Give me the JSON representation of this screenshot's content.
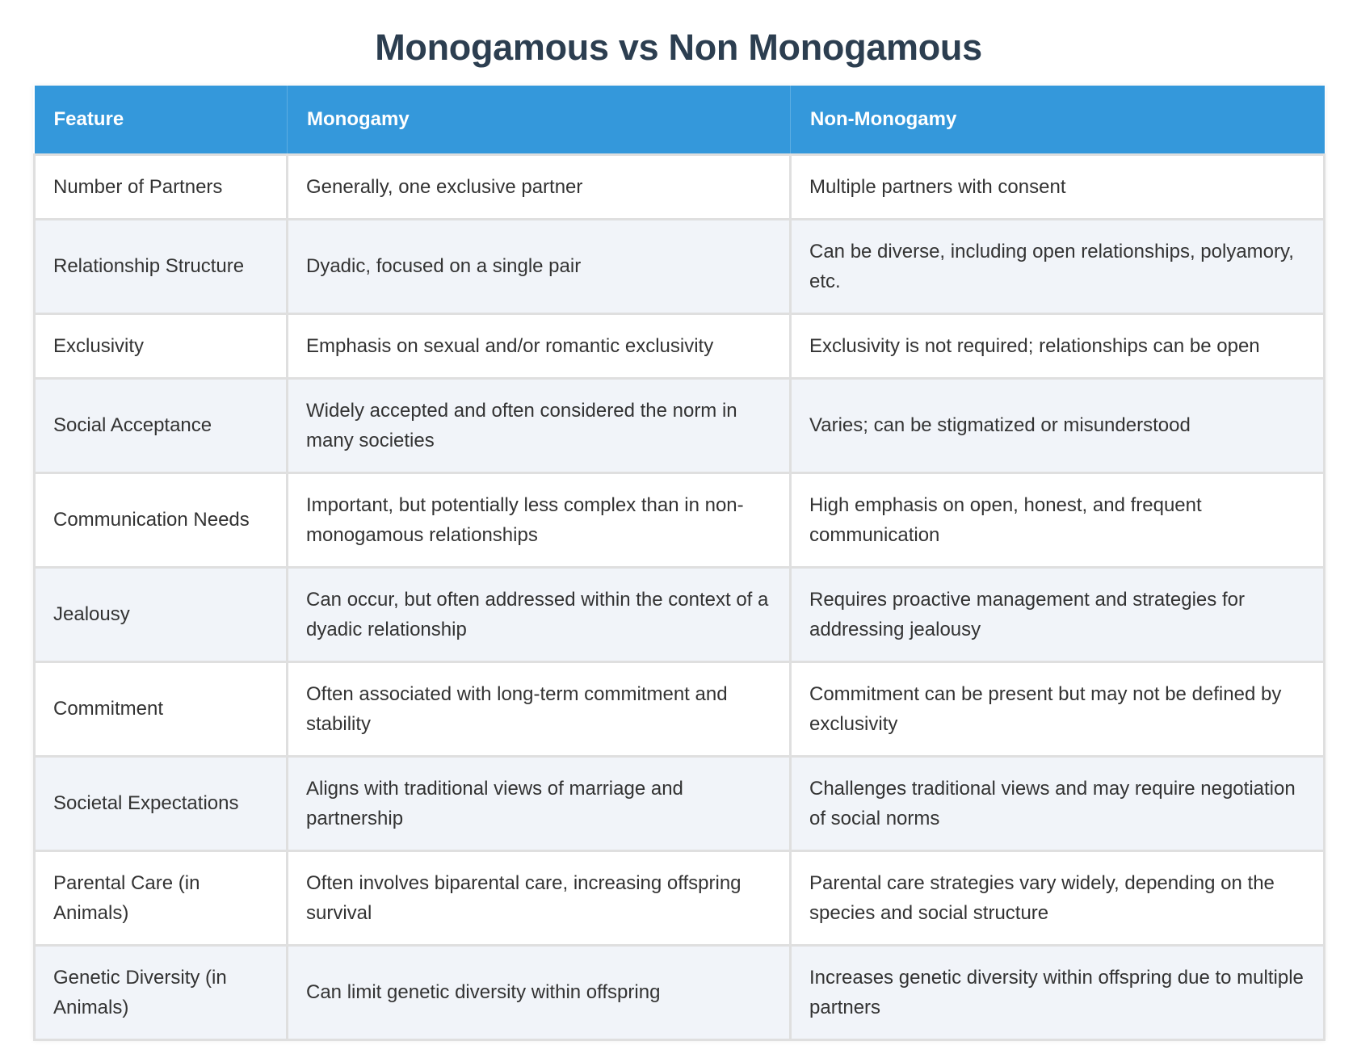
{
  "title": "Monogamous vs Non Monogamous",
  "colors": {
    "title": "#2c3e50",
    "header_bg": "#3498db",
    "header_text": "#ffffff",
    "row_alt_bg": "#f1f4f9",
    "border": "#dfdfdf",
    "body_text": "#333333"
  },
  "table": {
    "headers": [
      "Feature",
      "Monogamy",
      "Non-Monogamy"
    ],
    "rows": [
      {
        "feature": "Number of Partners",
        "monogamy": "Generally, one exclusive partner",
        "non_monogamy": "Multiple partners with consent"
      },
      {
        "feature": "Relationship Structure",
        "monogamy": "Dyadic, focused on a single pair",
        "non_monogamy": "Can be diverse, including open relationships, polyamory, etc."
      },
      {
        "feature": "Exclusivity",
        "monogamy": "Emphasis on sexual and/or romantic exclusivity",
        "non_monogamy": "Exclusivity is not required; relationships can be open"
      },
      {
        "feature": "Social Acceptance",
        "monogamy": "Widely accepted and often considered the norm in many societies",
        "non_monogamy": "Varies; can be stigmatized or misunderstood"
      },
      {
        "feature": "Communication Needs",
        "monogamy": "Important, but potentially less complex than in non-monogamous relationships",
        "non_monogamy": "High emphasis on open, honest, and frequent communication"
      },
      {
        "feature": "Jealousy",
        "monogamy": "Can occur, but often addressed within the context of a dyadic relationship",
        "non_monogamy": "Requires proactive management and strategies for addressing jealousy"
      },
      {
        "feature": "Commitment",
        "monogamy": "Often associated with long-term commitment and stability",
        "non_monogamy": "Commitment can be present but may not be defined by exclusivity"
      },
      {
        "feature": "Societal Expectations",
        "monogamy": "Aligns with traditional views of marriage and partnership",
        "non_monogamy": "Challenges traditional views and may require negotiation of social norms"
      },
      {
        "feature": "Parental Care (in Animals)",
        "monogamy": "Often involves biparental care, increasing offspring survival",
        "non_monogamy": "Parental care strategies vary widely, depending on the species and social structure"
      },
      {
        "feature": "Genetic Diversity (in Animals)",
        "monogamy": "Can limit genetic diversity within offspring",
        "non_monogamy": "Increases genetic diversity within offspring due to multiple partners"
      }
    ]
  }
}
